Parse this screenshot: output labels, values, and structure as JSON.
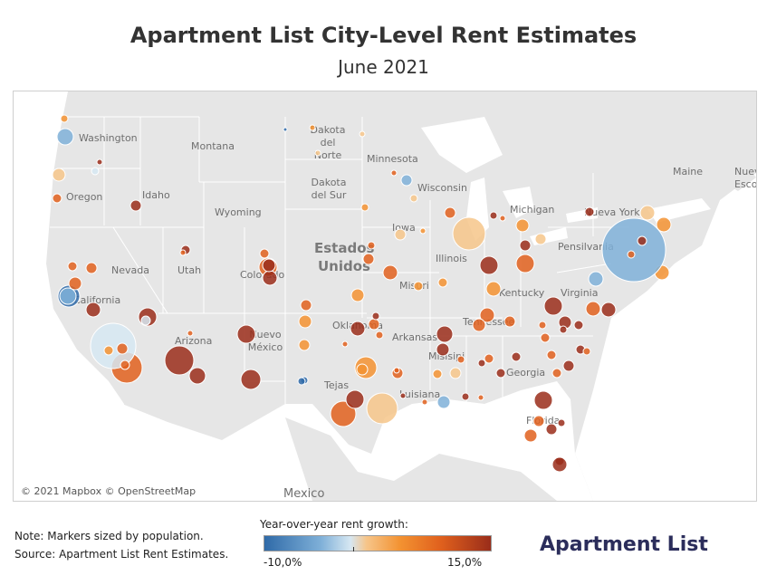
{
  "title": "Apartment List City-Level Rent Estimates",
  "subtitle": "June 2021",
  "map": {
    "copyright": "© 2021 Mapbox © OpenStreetMap",
    "labels": {
      "washington": "Washington",
      "montana": "Montana",
      "dakota_norte": "Dakota del Norte",
      "minnesota": "Minnesota",
      "oregon": "Oregon",
      "idaho": "Idaho",
      "dakota_sur": "Dakota del Sur",
      "wisconsin": "Wisconsin",
      "michigan": "Michigan",
      "wyoming": "Wyoming",
      "iowa": "Iowa",
      "nevada": "Nevada",
      "utah": "Utah",
      "colorado": "Colorado",
      "illinois": "Illinois",
      "california": "California",
      "misuri": "Misuri",
      "kentucky": "Kentucky",
      "virginia": "Virginia",
      "pensilvania": "Pensilvania",
      "nueva_york": "Nueva York",
      "maine": "Maine",
      "nueva_escocia": "Nueva Esco",
      "arizona": "Arizona",
      "nuevo_mexico": "Nuevo México",
      "oklahoma": "Oklahoma",
      "arkansas": "Arkansas",
      "tennessee": "Tennessee",
      "misisipi": "Misisipi",
      "georgia": "Georgia",
      "tejas": "Tejas",
      "luisiana": "Luisiana",
      "florida": "Florida",
      "mexico": "Mexico",
      "country_us_line1": "Estados",
      "country_us_line2": "Unidos"
    }
  },
  "legend": {
    "title": "Year-over-year rent growth:",
    "min_label": "-10,0%",
    "max_label": "15,0%",
    "min_value": -10.0,
    "max_value": 15.0
  },
  "notes": {
    "line1": "Note: Markers sized by population.",
    "line2": "Source: Apartment List Rent Estimates."
  },
  "logo": {
    "text": "Apartment List"
  },
  "colors": {
    "strong_negative": "#2f6aa8",
    "negative": "#7fb0d8",
    "neutral": "#d6e7f2",
    "mild_positive": "#f6c58a",
    "positive": "#f39231",
    "strong_positive": "#e0601d",
    "very_strong_positive": "#9a2d1a",
    "land": "#e6e6e6",
    "water": "#ffffff"
  }
}
